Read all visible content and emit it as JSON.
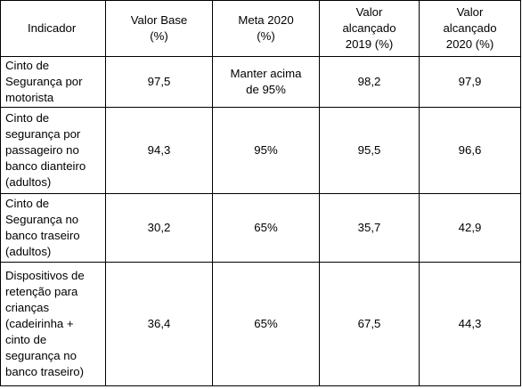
{
  "table": {
    "headers": [
      "Indicador",
      "Valor Base\n(%)",
      "Meta 2020\n(%)",
      "Valor\nalcançado\n2019 (%)",
      "Valor\nalcançado\n2020 (%)"
    ],
    "rows": [
      {
        "indicador": "Cinto de\nSegurança por\nmotorista",
        "valor_base": "97,5",
        "meta_2020": "Manter acima\nde 95%",
        "valor_2019": "98,2",
        "valor_2020": "97,9"
      },
      {
        "indicador": "Cinto de\nsegurança por\npassageiro no\nbanco dianteiro\n(adultos)",
        "valor_base": "94,3",
        "meta_2020": "95%",
        "valor_2019": "95,5",
        "valor_2020": "96,6"
      },
      {
        "indicador": "Cinto de\nSegurança no\nbanco traseiro\n(adultos)",
        "valor_base": "30,2",
        "meta_2020": "65%",
        "valor_2019": "35,7",
        "valor_2020": "42,9"
      },
      {
        "indicador": "Dispositivos de\nretenção para\ncrianças\n(cadeirinha +\ncinto de\nsegurança no\nbanco traseiro)",
        "valor_base": "36,4",
        "meta_2020": "65%",
        "valor_2019": "67,5",
        "valor_2020": "44,3"
      }
    ]
  }
}
